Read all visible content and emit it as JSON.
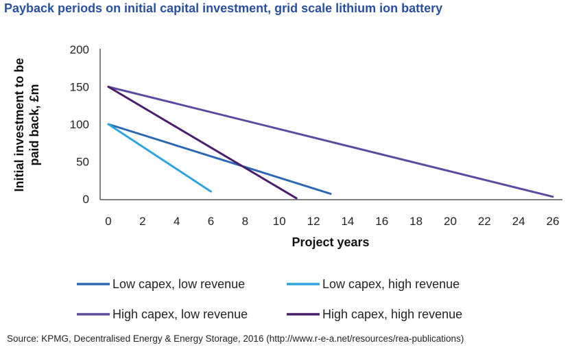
{
  "title": "Payback periods on initial capital investment, grid scale lithium ion battery",
  "source": "Source: KPMG, Decentralised Energy & Energy Storage, 2016 (http://www.r-e-a.net/resources/rea-publications)",
  "chart_data": {
    "type": "line",
    "xlabel": "Project years",
    "ylabel_lines": [
      "Initial investment to be",
      "paid back, £m"
    ],
    "xlim": [
      0,
      26
    ],
    "ylim": [
      0,
      200
    ],
    "x_ticks": [
      0,
      2,
      4,
      6,
      8,
      10,
      12,
      14,
      16,
      18,
      20,
      22,
      24,
      26
    ],
    "y_ticks": [
      0,
      50,
      100,
      150,
      200
    ],
    "grid": false,
    "legend_position": "bottom",
    "series": [
      {
        "name": "Low capex, low revenue",
        "color": "#2b68b0",
        "points": [
          [
            0,
            100
          ],
          [
            13,
            7
          ]
        ]
      },
      {
        "name": "Low capex, high revenue",
        "color": "#2ea3dc",
        "points": [
          [
            0,
            100
          ],
          [
            6,
            10
          ]
        ]
      },
      {
        "name": "High capex, low revenue",
        "color": "#5b4a9e",
        "points": [
          [
            0,
            150
          ],
          [
            26,
            3
          ]
        ]
      },
      {
        "name": "High capex, high revenue",
        "color": "#4b1e6b",
        "points": [
          [
            0,
            150
          ],
          [
            11,
            1
          ]
        ]
      }
    ]
  }
}
